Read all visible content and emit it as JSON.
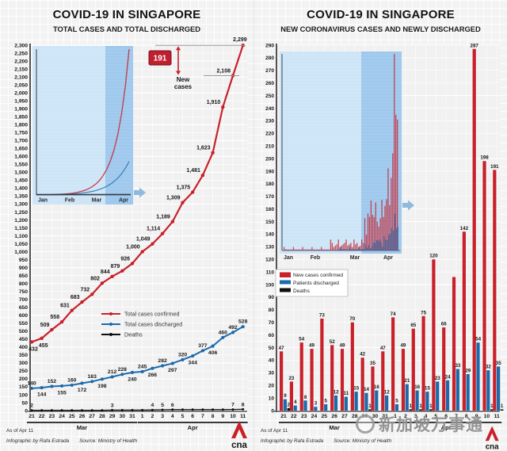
{
  "meta": {
    "as_of": "As of Apr 11",
    "credit": "Infographic by Rafa Estrada",
    "source": "Source: Ministry of Health",
    "watermark": "新加坡万事通",
    "logo_text": "cna"
  },
  "colors": {
    "confirmed": "#c9202a",
    "discharged": "#1b6aab",
    "deaths": "#101010",
    "annotation_badge_bg": "#c01f2f",
    "inset_bg": "#cde5f7",
    "inset_band": "#9bc6ec",
    "legend_border": "#b5b5b5"
  },
  "chart_data": [
    {
      "id": "total-cases",
      "type": "line",
      "title": "COVID-19 IN SINGAPORE",
      "subtitle": "TOTAL CASES AND TOTAL DISCHARGED",
      "categories": [
        "21",
        "22",
        "23",
        "24",
        "25",
        "26",
        "27",
        "28",
        "29",
        "30",
        "31",
        "1",
        "2",
        "3",
        "4",
        "5",
        "6",
        "7",
        "8",
        "9",
        "10",
        "11"
      ],
      "month_spans": [
        {
          "label": "Mar",
          "from": 0,
          "to": 10
        },
        {
          "label": "Apr",
          "from": 11,
          "to": 21
        }
      ],
      "ylim": [
        0,
        2300
      ],
      "ytick_step": 50,
      "grid": true,
      "legend_position": "inside-middle-left",
      "series": [
        {
          "name": "Total cases confirmed",
          "color_key": "confirmed",
          "values": [
            432,
            455,
            509,
            558,
            631,
            683,
            732,
            802,
            844,
            879,
            926,
            1000,
            1049,
            1114,
            1189,
            1309,
            1375,
            1481,
            1623,
            1910,
            2108,
            2299
          ]
        },
        {
          "name": "Total cases discharged",
          "color_key": "discharged",
          "values": [
            140,
            144,
            152,
            155,
            160,
            172,
            183,
            198,
            212,
            228,
            240,
            245,
            266,
            282,
            297,
            320,
            344,
            377,
            406,
            460,
            492,
            528
          ]
        },
        {
          "name": "Deaths",
          "color_key": "deaths",
          "values": [
            2,
            2,
            2,
            2,
            2,
            2,
            2,
            2,
            3,
            3,
            3,
            3,
            4,
            5,
            6,
            6,
            6,
            6,
            6,
            6,
            7,
            8
          ],
          "label_indices": [
            0,
            8,
            12,
            13,
            14,
            20,
            21
          ]
        }
      ],
      "annotation": {
        "badge": "191",
        "label": "New cases",
        "from_value": 2108,
        "to_value": 2299
      },
      "inset": {
        "months": [
          "Jan",
          "Feb",
          "Mar",
          "Apr"
        ]
      }
    },
    {
      "id": "daily-cases",
      "type": "bar",
      "title": "COVID-19 IN SINGAPORE",
      "subtitle": "NEW CORONAVIRUS CASES AND NEWLY DISCHARGED",
      "categories": [
        "21",
        "22",
        "23",
        "24",
        "25",
        "26",
        "27",
        "28",
        "29",
        "30",
        "31",
        "1",
        "2",
        "3",
        "4",
        "5",
        "6",
        "7",
        "8",
        "9",
        "10",
        "11"
      ],
      "month_spans": [
        {
          "label": "Mar",
          "from": 0,
          "to": 10
        },
        {
          "label": "Apr",
          "from": 11,
          "to": 21
        }
      ],
      "ylim": [
        0,
        290
      ],
      "ytick_step": 10,
      "grid": true,
      "legend_position": "inside-upper-left",
      "series": [
        {
          "name": "New cases confirmed",
          "color_key": "confirmed",
          "values": [
            47,
            23,
            54,
            49,
            73,
            52,
            49,
            70,
            42,
            35,
            47,
            74,
            49,
            65,
            75,
            120,
            66,
            106,
            142,
            287,
            198,
            191
          ],
          "hidden_label_indices": [
            17
          ]
        },
        {
          "name": "Patients discharged",
          "color_key": "discharged",
          "values": [
            9,
            4,
            8,
            3,
            5,
            12,
            11,
            15,
            14,
            16,
            12,
            5,
            21,
            16,
            15,
            23,
            24,
            33,
            29,
            54,
            32,
            35
          ]
        },
        {
          "name": "Deaths",
          "color_key": "deaths",
          "values": [
            2,
            0,
            0,
            0,
            0,
            0,
            0,
            0,
            1,
            0,
            0,
            0,
            1,
            1,
            1,
            0,
            0,
            0,
            0,
            0,
            1,
            1
          ]
        }
      ],
      "inset": {
        "months": [
          "Jan",
          "Feb",
          "Mar",
          "Apr"
        ]
      }
    }
  ]
}
